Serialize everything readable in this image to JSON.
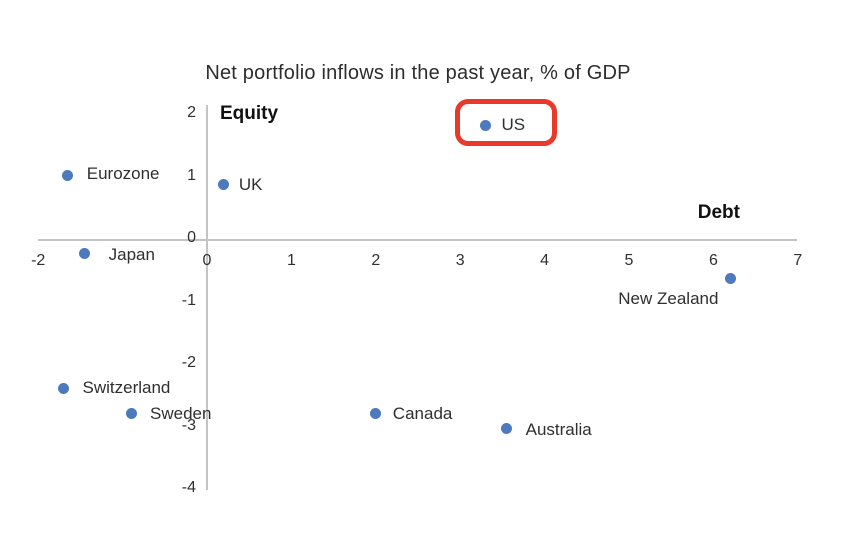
{
  "page": {
    "background": "#ffffff"
  },
  "chart_data": {
    "type": "scatter",
    "title": "Net portfolio inflows in the past year, % of GDP",
    "x_axis": {
      "label": "Debt",
      "ticks": [
        -2,
        -1,
        0,
        1,
        2,
        3,
        4,
        5,
        6,
        7
      ],
      "range": [
        -2,
        7
      ]
    },
    "y_axis": {
      "label": "Equity",
      "ticks": [
        2,
        1,
        0,
        -1,
        -2,
        -3,
        -4
      ],
      "range": [
        -4,
        2
      ]
    },
    "grid": false,
    "legend": "none",
    "point_color": "#4d79bd",
    "text_color": "#2f2f2f",
    "axis_line_color": "#c4c4c4",
    "points": [
      {
        "name": "US",
        "debt": 3.3,
        "equity": 1.8,
        "highlighted": true,
        "label_offset": [
          16,
          -1
        ]
      },
      {
        "name": "UK",
        "debt": 0.2,
        "equity": 0.85,
        "highlighted": false,
        "label_offset": [
          15,
          0
        ]
      },
      {
        "name": "Eurozone",
        "debt": -1.65,
        "equity": 1.0,
        "highlighted": false,
        "label_offset": [
          19,
          -2
        ]
      },
      {
        "name": "Japan",
        "debt": -1.45,
        "equity": -0.25,
        "highlighted": false,
        "label_offset": [
          23,
          1
        ],
        "label_bg": true
      },
      {
        "name": "New Zealand",
        "debt": 6.2,
        "equity": -0.65,
        "highlighted": false,
        "label_offset": [
          -112,
          20
        ]
      },
      {
        "name": "Switzerland",
        "debt": -1.7,
        "equity": -2.4,
        "highlighted": false,
        "label_offset": [
          19,
          0
        ]
      },
      {
        "name": "Sweden",
        "debt": -0.9,
        "equity": -2.8,
        "highlighted": false,
        "label_offset": [
          19,
          1
        ]
      },
      {
        "name": "Canada",
        "debt": 2.0,
        "equity": -2.8,
        "highlighted": false,
        "label_offset": [
          17,
          1
        ]
      },
      {
        "name": "Australia",
        "debt": 3.55,
        "equity": -3.05,
        "highlighted": false,
        "label_offset": [
          19,
          1
        ]
      }
    ],
    "highlight": {
      "country": "US",
      "color": "#e8392b",
      "style": "rounded-rectangle"
    }
  }
}
